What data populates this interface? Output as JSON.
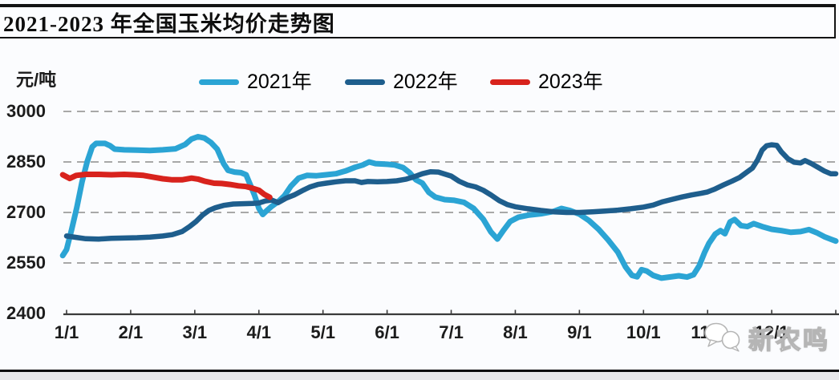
{
  "header": {
    "title": "2021-2023 年全国玉米均价走势图"
  },
  "watermark": {
    "text": "新农鸣"
  },
  "legend": [
    {
      "label": "2021年",
      "color": "#2ba4d4"
    },
    {
      "label": "2022年",
      "color": "#1e5e8d"
    },
    {
      "label": "2023年",
      "color": "#d8231d"
    }
  ],
  "chart_data": {
    "type": "line",
    "title": "2021-2023 年全国玉米均价走势图",
    "xlabel": "",
    "ylabel": "元/吨",
    "ylim": [
      2400,
      3000
    ],
    "y_ticks": [
      2400,
      2550,
      2700,
      2850,
      3000
    ],
    "x_tick_labels": [
      "1/1",
      "2/1",
      "3/1",
      "4/1",
      "5/1",
      "6/1",
      "7/1",
      "8/1",
      "9/1",
      "10/1",
      "11/1",
      "12/1"
    ],
    "x_unit": "month_index (0 = Jan 1, 11 = Dec 1, 12 = Dec 31)",
    "grid": "horizontal dashed",
    "grid_color": "#8c8c8c",
    "legend_position": "top",
    "series": [
      {
        "name": "2021年",
        "color": "#2ba4d4",
        "points": [
          [
            -0.06,
            2572
          ],
          [
            0,
            2590
          ],
          [
            0.08,
            2650
          ],
          [
            0.16,
            2715
          ],
          [
            0.24,
            2790
          ],
          [
            0.32,
            2850
          ],
          [
            0.4,
            2895
          ],
          [
            0.46,
            2905
          ],
          [
            0.6,
            2905
          ],
          [
            0.68,
            2898
          ],
          [
            0.75,
            2888
          ],
          [
            0.9,
            2886
          ],
          [
            1.1,
            2885
          ],
          [
            1.3,
            2884
          ],
          [
            1.5,
            2886
          ],
          [
            1.7,
            2889
          ],
          [
            1.85,
            2902
          ],
          [
            1.95,
            2918
          ],
          [
            2.05,
            2925
          ],
          [
            2.15,
            2921
          ],
          [
            2.25,
            2908
          ],
          [
            2.35,
            2888
          ],
          [
            2.45,
            2845
          ],
          [
            2.52,
            2825
          ],
          [
            2.62,
            2820
          ],
          [
            2.72,
            2818
          ],
          [
            2.8,
            2812
          ],
          [
            2.87,
            2780
          ],
          [
            2.93,
            2752
          ],
          [
            3,
            2712
          ],
          [
            3.06,
            2694
          ],
          [
            3.12,
            2705
          ],
          [
            3.2,
            2718
          ],
          [
            3.3,
            2732
          ],
          [
            3.4,
            2750
          ],
          [
            3.5,
            2778
          ],
          [
            3.62,
            2802
          ],
          [
            3.75,
            2810
          ],
          [
            3.9,
            2809
          ],
          [
            4.05,
            2812
          ],
          [
            4.2,
            2815
          ],
          [
            4.35,
            2823
          ],
          [
            4.5,
            2834
          ],
          [
            4.62,
            2841
          ],
          [
            4.72,
            2850
          ],
          [
            4.82,
            2845
          ],
          [
            5,
            2843
          ],
          [
            5.12,
            2841
          ],
          [
            5.25,
            2833
          ],
          [
            5.35,
            2818
          ],
          [
            5.45,
            2797
          ],
          [
            5.55,
            2787
          ],
          [
            5.65,
            2760
          ],
          [
            5.75,
            2746
          ],
          [
            5.9,
            2738
          ],
          [
            6.05,
            2736
          ],
          [
            6.2,
            2730
          ],
          [
            6.35,
            2712
          ],
          [
            6.5,
            2680
          ],
          [
            6.62,
            2642
          ],
          [
            6.72,
            2621
          ],
          [
            6.82,
            2648
          ],
          [
            6.92,
            2673
          ],
          [
            7.05,
            2686
          ],
          [
            7.2,
            2692
          ],
          [
            7.4,
            2696
          ],
          [
            7.6,
            2703
          ],
          [
            7.72,
            2712
          ],
          [
            7.85,
            2706
          ],
          [
            8,
            2695
          ],
          [
            8.15,
            2676
          ],
          [
            8.3,
            2650
          ],
          [
            8.45,
            2618
          ],
          [
            8.6,
            2582
          ],
          [
            8.72,
            2538
          ],
          [
            8.82,
            2513
          ],
          [
            8.9,
            2509
          ],
          [
            8.97,
            2530
          ],
          [
            9.05,
            2526
          ],
          [
            9.15,
            2513
          ],
          [
            9.28,
            2505
          ],
          [
            9.4,
            2508
          ],
          [
            9.55,
            2512
          ],
          [
            9.68,
            2508
          ],
          [
            9.78,
            2515
          ],
          [
            9.87,
            2542
          ],
          [
            9.95,
            2580
          ],
          [
            10.02,
            2608
          ],
          [
            10.12,
            2636
          ],
          [
            10.2,
            2646
          ],
          [
            10.27,
            2637
          ],
          [
            10.35,
            2672
          ],
          [
            10.42,
            2679
          ],
          [
            10.52,
            2661
          ],
          [
            10.62,
            2658
          ],
          [
            10.72,
            2667
          ],
          [
            10.85,
            2658
          ],
          [
            11,
            2650
          ],
          [
            11.15,
            2646
          ],
          [
            11.3,
            2641
          ],
          [
            11.45,
            2643
          ],
          [
            11.58,
            2649
          ],
          [
            11.7,
            2640
          ],
          [
            11.82,
            2628
          ],
          [
            11.93,
            2620
          ],
          [
            12,
            2615
          ]
        ]
      },
      {
        "name": "2022年",
        "color": "#1e5e8d",
        "points": [
          [
            0,
            2630
          ],
          [
            0.15,
            2626
          ],
          [
            0.3,
            2622
          ],
          [
            0.5,
            2621
          ],
          [
            0.7,
            2623
          ],
          [
            0.9,
            2624
          ],
          [
            1.1,
            2625
          ],
          [
            1.3,
            2627
          ],
          [
            1.5,
            2630
          ],
          [
            1.65,
            2634
          ],
          [
            1.8,
            2643
          ],
          [
            1.92,
            2658
          ],
          [
            2.02,
            2673
          ],
          [
            2.12,
            2692
          ],
          [
            2.22,
            2706
          ],
          [
            2.32,
            2714
          ],
          [
            2.45,
            2721
          ],
          [
            2.6,
            2725
          ],
          [
            2.75,
            2726
          ],
          [
            2.9,
            2727
          ],
          [
            3,
            2728
          ],
          [
            3.1,
            2734
          ],
          [
            3.2,
            2737
          ],
          [
            3.3,
            2729
          ],
          [
            3.42,
            2742
          ],
          [
            3.55,
            2752
          ],
          [
            3.68,
            2765
          ],
          [
            3.8,
            2776
          ],
          [
            3.92,
            2783
          ],
          [
            4.05,
            2787
          ],
          [
            4.2,
            2791
          ],
          [
            4.35,
            2794
          ],
          [
            4.5,
            2794
          ],
          [
            4.6,
            2789
          ],
          [
            4.7,
            2792
          ],
          [
            4.85,
            2791
          ],
          [
            5,
            2792
          ],
          [
            5.15,
            2794
          ],
          [
            5.3,
            2799
          ],
          [
            5.42,
            2806
          ],
          [
            5.55,
            2815
          ],
          [
            5.68,
            2821
          ],
          [
            5.8,
            2820
          ],
          [
            5.9,
            2814
          ],
          [
            6,
            2808
          ],
          [
            6.12,
            2793
          ],
          [
            6.25,
            2782
          ],
          [
            6.38,
            2776
          ],
          [
            6.5,
            2766
          ],
          [
            6.62,
            2752
          ],
          [
            6.75,
            2735
          ],
          [
            6.88,
            2723
          ],
          [
            7,
            2717
          ],
          [
            7.2,
            2711
          ],
          [
            7.4,
            2706
          ],
          [
            7.6,
            2702
          ],
          [
            7.8,
            2700
          ],
          [
            8,
            2700
          ],
          [
            8.2,
            2702
          ],
          [
            8.4,
            2704
          ],
          [
            8.6,
            2707
          ],
          [
            8.8,
            2711
          ],
          [
            9,
            2716
          ],
          [
            9.15,
            2722
          ],
          [
            9.3,
            2732
          ],
          [
            9.45,
            2739
          ],
          [
            9.6,
            2746
          ],
          [
            9.75,
            2752
          ],
          [
            9.9,
            2757
          ],
          [
            10,
            2761
          ],
          [
            10.12,
            2770
          ],
          [
            10.25,
            2782
          ],
          [
            10.38,
            2793
          ],
          [
            10.5,
            2804
          ],
          [
            10.6,
            2818
          ],
          [
            10.7,
            2832
          ],
          [
            10.78,
            2856
          ],
          [
            10.85,
            2885
          ],
          [
            10.92,
            2898
          ],
          [
            11,
            2901
          ],
          [
            11.08,
            2899
          ],
          [
            11.15,
            2880
          ],
          [
            11.25,
            2860
          ],
          [
            11.35,
            2849
          ],
          [
            11.45,
            2847
          ],
          [
            11.52,
            2854
          ],
          [
            11.62,
            2845
          ],
          [
            11.72,
            2834
          ],
          [
            11.82,
            2823
          ],
          [
            11.92,
            2815
          ],
          [
            12,
            2815
          ]
        ]
      },
      {
        "name": "2023年",
        "color": "#d8231d",
        "points": [
          [
            -0.06,
            2812
          ],
          [
            0.05,
            2801
          ],
          [
            0.15,
            2810
          ],
          [
            0.3,
            2813
          ],
          [
            0.5,
            2813
          ],
          [
            0.7,
            2812
          ],
          [
            0.9,
            2813
          ],
          [
            1.05,
            2812
          ],
          [
            1.2,
            2810
          ],
          [
            1.35,
            2805
          ],
          [
            1.5,
            2800
          ],
          [
            1.65,
            2797
          ],
          [
            1.8,
            2797
          ],
          [
            1.95,
            2802
          ],
          [
            2.05,
            2799
          ],
          [
            2.15,
            2793
          ],
          [
            2.3,
            2787
          ],
          [
            2.42,
            2786
          ],
          [
            2.55,
            2783
          ],
          [
            2.68,
            2779
          ],
          [
            2.8,
            2777
          ],
          [
            2.9,
            2772
          ],
          [
            3,
            2766
          ],
          [
            3.08,
            2754
          ],
          [
            3.17,
            2745
          ]
        ]
      }
    ]
  }
}
